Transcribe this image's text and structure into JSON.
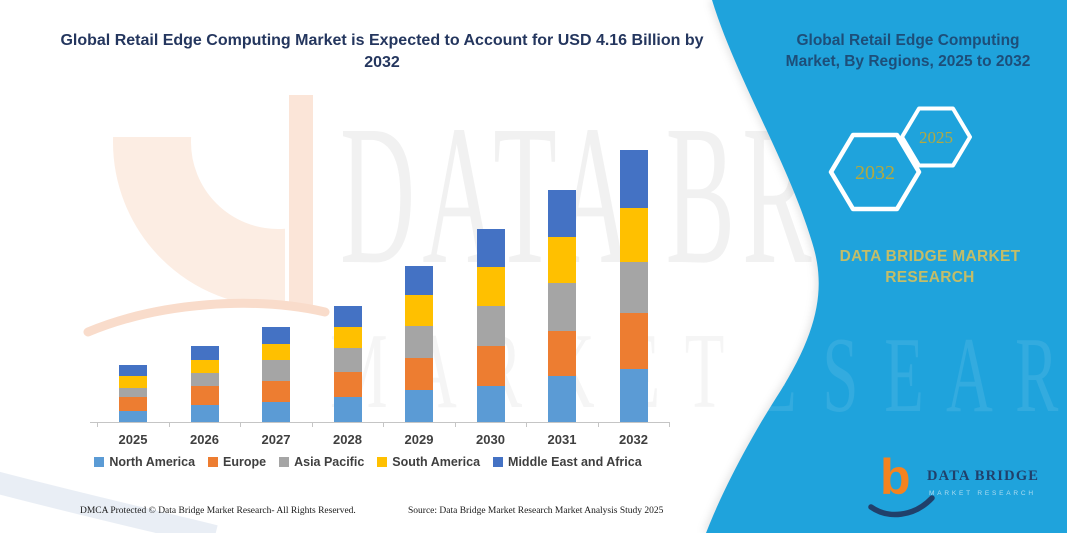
{
  "colors": {
    "teal": "#1FA3DC",
    "title_navy": "#24365E",
    "heading_navy": "#1D4E79",
    "olive": "#B3A93F",
    "brand_olive": "#C3BD68",
    "label_gray": "#3F3F3F",
    "axis_gray": "#C5C5C5",
    "logo_orange": "#F5831F",
    "logo_navy": "#20406B"
  },
  "main": {
    "title": "Global Retail Edge Computing Market is Expected to Account for USD 4.16 Billion by 2032"
  },
  "right_panel": {
    "heading": "Global Retail Edge Computing Market, By Regions, 2025 to 2032",
    "hexagons": [
      {
        "label": "2032"
      },
      {
        "label": "2025"
      }
    ],
    "brand": "DATA BRIDGE MARKET RESEARCH"
  },
  "watermark": {
    "top": "DATA BRI",
    "bottom": "M A R K E T",
    "overlay": "R E S E A R C H"
  },
  "footer": {
    "left": "DMCA Protected © Data Bridge Market Research-  All Rights Reserved.",
    "source": "Source: Data Bridge Market Research  Market Analysis Study 2025"
  },
  "logo": {
    "letter": "b",
    "name": "DATA BRIDGE",
    "sub": "MARKET RESEARCH"
  },
  "chart_data": {
    "type": "bar",
    "stacked": true,
    "unit": "USD Billion",
    "categories": [
      "2025",
      "2026",
      "2027",
      "2028",
      "2029",
      "2030",
      "2031",
      "2032"
    ],
    "series": [
      {
        "name": "North America",
        "color": "#5B9BD5",
        "values": [
          0.18,
          0.27,
          0.32,
          0.4,
          0.5,
          0.56,
          0.72,
          0.83
        ]
      },
      {
        "name": "Europe",
        "color": "#ED7D31",
        "values": [
          0.21,
          0.29,
          0.32,
          0.37,
          0.49,
          0.61,
          0.68,
          0.85
        ]
      },
      {
        "name": "Asia Pacific",
        "color": "#A5A5A5",
        "values": [
          0.15,
          0.2,
          0.32,
          0.37,
          0.49,
          0.62,
          0.74,
          0.78
        ]
      },
      {
        "name": "South America",
        "color": "#FFC000",
        "values": [
          0.17,
          0.2,
          0.24,
          0.33,
          0.47,
          0.59,
          0.7,
          0.82
        ]
      },
      {
        "name": "Middle East and Africa",
        "color": "#4472C4",
        "values": [
          0.17,
          0.21,
          0.27,
          0.32,
          0.44,
          0.58,
          0.71,
          0.88
        ]
      }
    ],
    "totals": [
      0.88,
      1.17,
      1.47,
      1.79,
      2.39,
      2.96,
      3.55,
      4.16
    ],
    "ylim": [
      0,
      4.4
    ],
    "grid": false,
    "legend_position": "bottom"
  }
}
